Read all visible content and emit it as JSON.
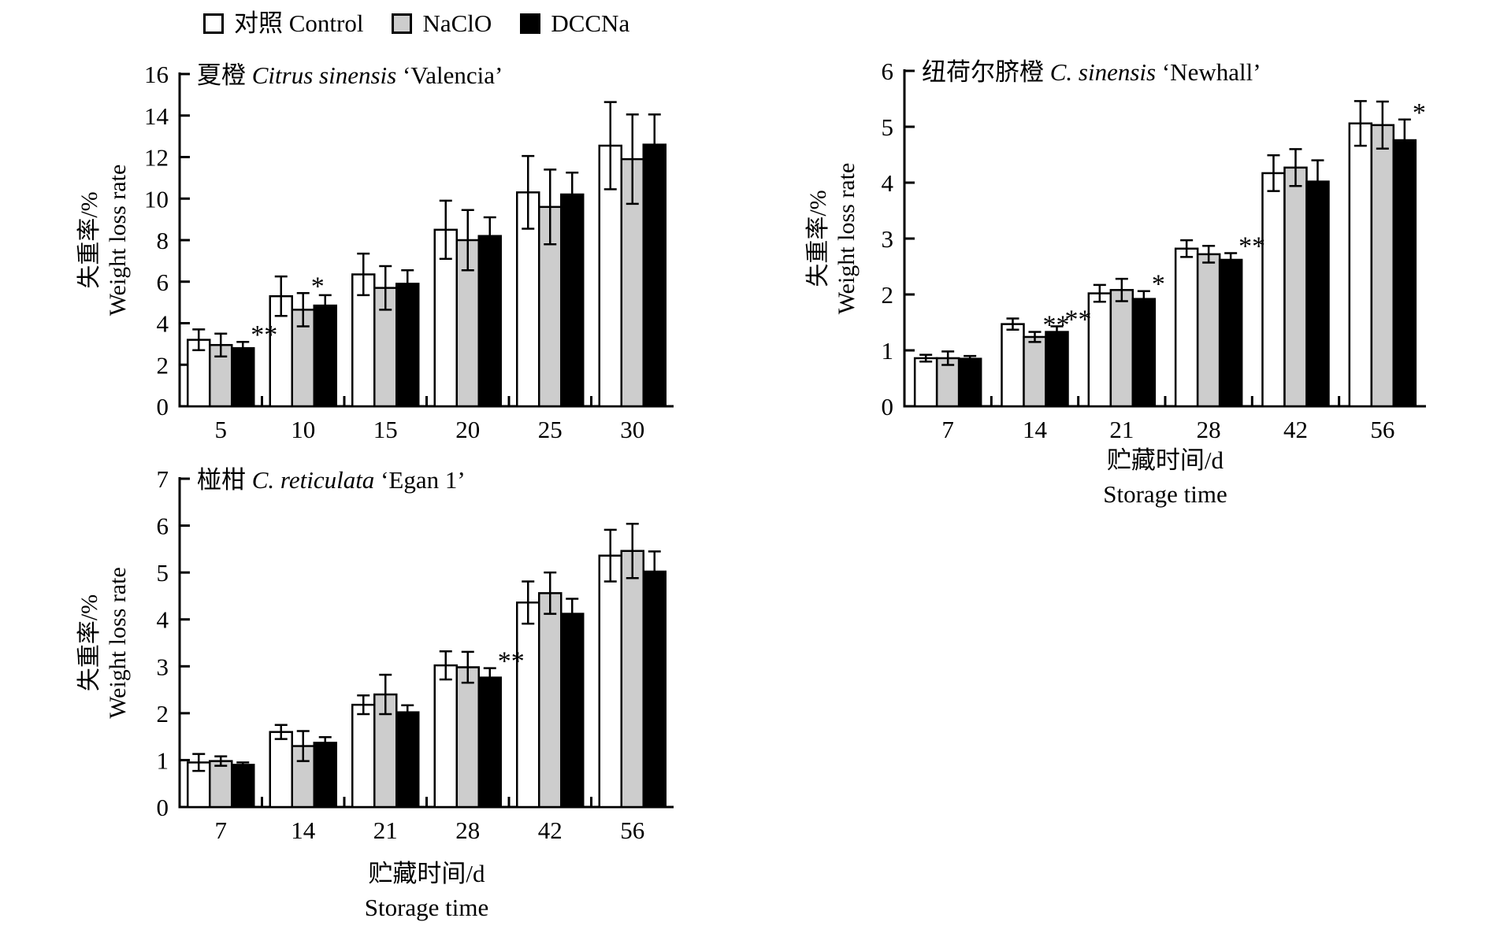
{
  "page": {
    "background": "#ffffff"
  },
  "legend": {
    "items": [
      {
        "key": "control",
        "label": "对照 Control",
        "color": "#ffffff"
      },
      {
        "key": "naclo",
        "label": "NaClO",
        "color": "#cdcdcd"
      },
      {
        "key": "dccna",
        "label": "DCCNa",
        "color": "#000000"
      }
    ]
  },
  "chart_data": [
    {
      "id": "valencia",
      "type": "bar",
      "title_parts": [
        {
          "text": "夏橙 ",
          "italic": false
        },
        {
          "text": "Citrus sinensis",
          "italic": true
        },
        {
          "text": " ‘Valencia’",
          "italic": false
        }
      ],
      "ylabel_zh": "失重率/%",
      "ylabel_en": "Weight loss rate",
      "xcaption_zh": null,
      "xcaption_en": null,
      "categories": [
        "5",
        "10",
        "15",
        "20",
        "25",
        "30"
      ],
      "ylim": [
        0,
        16
      ],
      "ytick_step": 2,
      "grid": false,
      "series": [
        {
          "name": "Control",
          "color_key": "control",
          "values": [
            3.2,
            5.3,
            6.35,
            8.5,
            10.3,
            12.55
          ],
          "errors": [
            0.5,
            0.95,
            1.0,
            1.4,
            1.75,
            2.1
          ]
        },
        {
          "name": "NaClO",
          "color_key": "naclo",
          "values": [
            2.95,
            4.65,
            5.7,
            8.0,
            9.6,
            11.9
          ],
          "errors": [
            0.55,
            0.8,
            1.05,
            1.45,
            1.8,
            2.15
          ]
        },
        {
          "name": "DCCNa",
          "color_key": "dccna",
          "values": [
            2.8,
            4.85,
            5.9,
            8.2,
            10.2,
            12.6
          ],
          "errors": [
            0.3,
            0.5,
            0.65,
            0.9,
            1.05,
            1.45
          ]
        }
      ],
      "significance": [
        {
          "category": "5",
          "series": "DCCNa",
          "mark": "**"
        },
        {
          "category": "10",
          "series": "NaClO",
          "mark": "*"
        }
      ]
    },
    {
      "id": "newhall",
      "type": "bar",
      "title_parts": [
        {
          "text": "纽荷尔脐橙 ",
          "italic": false
        },
        {
          "text": "C. sinensis",
          "italic": true
        },
        {
          "text": " ‘Newhall’",
          "italic": false
        }
      ],
      "ylabel_zh": "失重率/%",
      "ylabel_en": "Weight loss rate",
      "xcaption_zh": "贮藏时间/d",
      "xcaption_en": "Storage time",
      "categories": [
        "7",
        "14",
        "21",
        "28",
        "42",
        "56"
      ],
      "ylim": [
        0,
        6
      ],
      "ytick_step": 1,
      "grid": false,
      "series": [
        {
          "name": "Control",
          "color_key": "control",
          "values": [
            0.86,
            1.47,
            2.02,
            2.82,
            4.17,
            5.06
          ],
          "errors": [
            0.06,
            0.1,
            0.15,
            0.15,
            0.32,
            0.4
          ]
        },
        {
          "name": "NaClO",
          "color_key": "naclo",
          "values": [
            0.86,
            1.24,
            2.08,
            2.72,
            4.27,
            5.03
          ],
          "errors": [
            0.12,
            0.09,
            0.2,
            0.15,
            0.33,
            0.42
          ]
        },
        {
          "name": "DCCNa",
          "color_key": "dccna",
          "values": [
            0.85,
            1.33,
            1.92,
            2.62,
            4.02,
            4.76
          ],
          "errors": [
            0.05,
            0.1,
            0.14,
            0.12,
            0.38,
            0.37
          ]
        }
      ],
      "significance": [
        {
          "category": "14",
          "series": "NaClO",
          "mark": "**"
        },
        {
          "category": "14",
          "series": "DCCNa",
          "mark": "**"
        },
        {
          "category": "21",
          "series": "DCCNa",
          "mark": "*"
        },
        {
          "category": "28",
          "series": "DCCNa",
          "mark": "**"
        },
        {
          "category": "56",
          "series": "DCCNa",
          "mark": "*"
        }
      ]
    },
    {
      "id": "egan",
      "type": "bar",
      "title_parts": [
        {
          "text": "椪柑 ",
          "italic": false
        },
        {
          "text": "C. reticulata",
          "italic": true
        },
        {
          "text": " ‘Egan 1’",
          "italic": false
        }
      ],
      "ylabel_zh": "失重率/%",
      "ylabel_en": "Weight loss rate",
      "xcaption_zh": "贮藏时间/d",
      "xcaption_en": "Storage time",
      "categories": [
        "7",
        "14",
        "21",
        "28",
        "42",
        "56"
      ],
      "ylim": [
        0,
        7
      ],
      "ytick_step": 1,
      "grid": false,
      "series": [
        {
          "name": "Control",
          "color_key": "control",
          "values": [
            0.95,
            1.6,
            2.18,
            3.02,
            4.36,
            5.36
          ],
          "errors": [
            0.18,
            0.15,
            0.2,
            0.3,
            0.45,
            0.55
          ]
        },
        {
          "name": "NaClO",
          "color_key": "naclo",
          "values": [
            0.98,
            1.3,
            2.4,
            2.98,
            4.56,
            5.46
          ],
          "errors": [
            0.1,
            0.32,
            0.42,
            0.33,
            0.44,
            0.58
          ]
        },
        {
          "name": "DCCNa",
          "color_key": "dccna",
          "values": [
            0.9,
            1.37,
            2.02,
            2.76,
            4.12,
            5.02
          ],
          "errors": [
            0.05,
            0.12,
            0.15,
            0.2,
            0.32,
            0.43
          ]
        }
      ],
      "significance": [
        {
          "category": "28",
          "series": "DCCNa",
          "mark": "**"
        }
      ]
    }
  ]
}
